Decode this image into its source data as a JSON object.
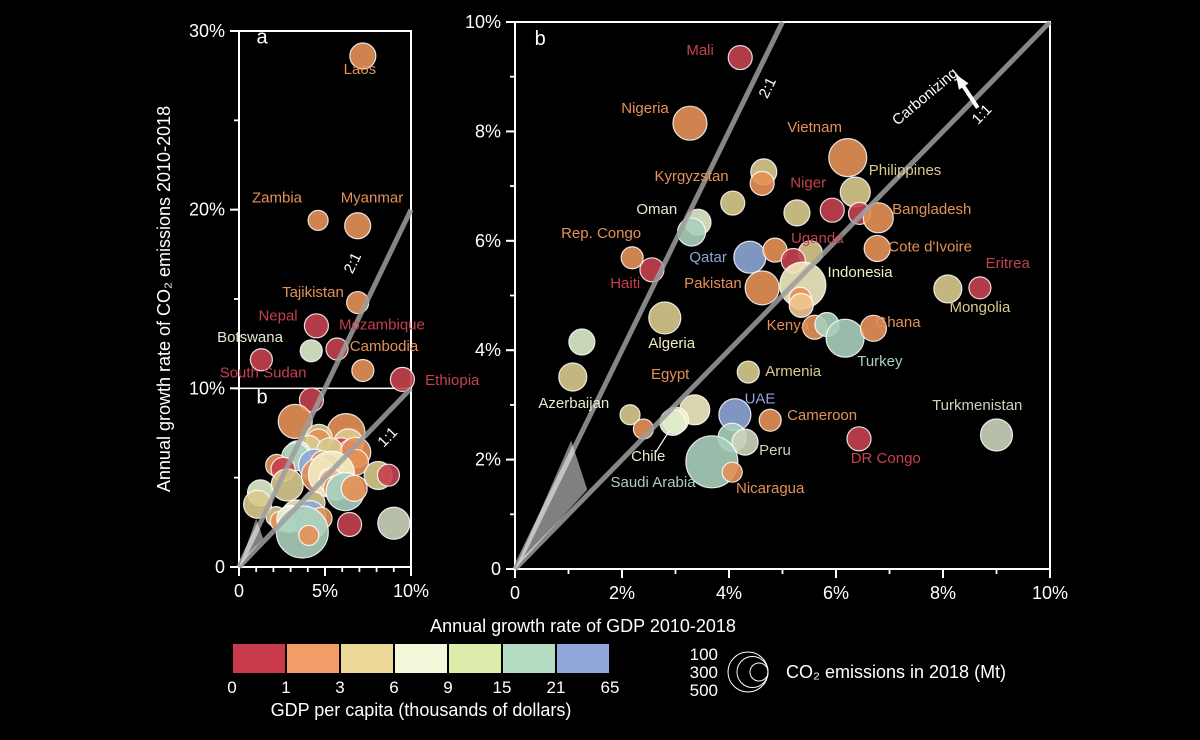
{
  "figure": {
    "x_axis_label": "Annual growth rate of GDP 2010-2018",
    "y_axis_label": "Annual growth rate of CO₂ emissions 2010-2018",
    "background": "#000000"
  },
  "palette": {
    "red": "#c4414f",
    "orange": "#e59158",
    "sand": "#d9ca8d",
    "cream": "#f0ecc2",
    "peach": "#f2c591",
    "palegreen": "#e0edcc",
    "teal": "#a9cfbd",
    "gray": "#ccd4ba",
    "blue": "#8ea6d6",
    "white": "#ffffff",
    "line_gray": "#9e9e9e"
  },
  "legend_color": {
    "caption": "GDP per capita (thousands of dollars)",
    "boundaries": [
      0,
      1,
      3,
      6,
      9,
      15,
      21,
      65
    ],
    "swatches": [
      "#c8394b",
      "#f29c68",
      "#ecd99a",
      "#f3f8da",
      "#dcecaa",
      "#b3dcc3",
      "#8fa7d9"
    ]
  },
  "legend_size": {
    "caption": "CO₂ emissions in 2018 (Mt)",
    "values": [
      100,
      300,
      500
    ],
    "radii": [
      9,
      15.5,
      20
    ]
  },
  "chart_data": [
    {
      "id": "a",
      "type": "scatter",
      "panel_letter": "a",
      "xlim": [
        0,
        10
      ],
      "ylim": [
        0,
        30
      ],
      "x_minor": 1,
      "y_minor": 5,
      "x_ticks": [
        {
          "v": 0,
          "t": "0"
        },
        {
          "v": 5,
          "t": "5%"
        },
        {
          "v": 10,
          "t": "10%"
        }
      ],
      "y_ticks": [
        {
          "v": 0,
          "t": "0"
        },
        {
          "v": 10,
          "t": "10%"
        },
        {
          "v": 20,
          "t": "20%"
        },
        {
          "v": 30,
          "t": "30%"
        }
      ],
      "ref_lines": [
        {
          "name": "2:1",
          "x1": 0,
          "y1": 0,
          "x2": 10,
          "y2": 20
        },
        {
          "name": "1:1",
          "x1": 0,
          "y1": 0,
          "x2": 10,
          "y2": 10
        }
      ],
      "origin_wedge": [
        [
          0,
          0
        ],
        [
          1.0,
          2.7
        ],
        [
          1.4,
          1.6
        ]
      ],
      "inner_box": {
        "x1": 0,
        "y1": 0,
        "x2": 10,
        "y2": 10
      },
      "inset_points_from": "b",
      "points": [
        {
          "n": "Laos",
          "x": 7.2,
          "y": 28.6,
          "r": 13,
          "c": "orange"
        },
        {
          "n": "Zambia",
          "x": 4.6,
          "y": 19.4,
          "r": 10,
          "c": "orange"
        },
        {
          "n": "Myanmar",
          "x": 6.9,
          "y": 19.1,
          "r": 13,
          "c": "orange"
        },
        {
          "n": "Tajikistan",
          "x": 6.9,
          "y": 14.8,
          "r": 11,
          "c": "orange"
        },
        {
          "n": "Nepal",
          "x": 4.5,
          "y": 13.5,
          "r": 12,
          "c": "red"
        },
        {
          "n": "Botswana",
          "x": 4.2,
          "y": 12.1,
          "r": 11,
          "c": "palegreen"
        },
        {
          "n": "Mozambique",
          "x": 5.7,
          "y": 12.2,
          "r": 11,
          "c": "red"
        },
        {
          "n": "Cambodia",
          "x": 7.2,
          "y": 11.0,
          "r": 11,
          "c": "orange"
        },
        {
          "n": "South Sudan",
          "x": 1.3,
          "y": 11.6,
          "r": 11,
          "c": "red"
        },
        {
          "n": "Ethiopia",
          "x": 9.5,
          "y": 10.5,
          "r": 12,
          "c": "red"
        }
      ],
      "labels": [
        {
          "t": "a",
          "x": 1.34,
          "y": 29.3,
          "c": "white",
          "size": 20
        },
        {
          "t": "b",
          "x": 1.34,
          "y": 9.16,
          "c": "white",
          "size": 20
        },
        {
          "t": "Laos",
          "x": 7.03,
          "y": 27.6,
          "c": "orange"
        },
        {
          "t": "Zambia",
          "x": 2.21,
          "y": 20.4,
          "c": "orange"
        },
        {
          "t": "Myanmar",
          "x": 7.73,
          "y": 20.4,
          "c": "orange"
        },
        {
          "t": "Tajikistan",
          "x": 4.3,
          "y": 15.1,
          "c": "orange"
        },
        {
          "t": "Nepal",
          "x": 2.27,
          "y": 13.8,
          "c": "red"
        },
        {
          "t": "Mozambique",
          "x": 8.31,
          "y": 13.3,
          "c": "red"
        },
        {
          "t": "Botswana",
          "x": 0.64,
          "y": 12.6,
          "c": "palegreen"
        },
        {
          "t": "Cambodia",
          "x": 8.43,
          "y": 12.1,
          "c": "orange"
        },
        {
          "t": "South Sudan",
          "x": 1.4,
          "y": 10.6,
          "c": "red"
        },
        {
          "t": "Ethiopia",
          "x": 12.4,
          "y": 10.2,
          "c": "red"
        },
        {
          "t": "2:1",
          "x": 6.86,
          "y": 16.9,
          "c": "white",
          "rot": -64
        },
        {
          "t": "1:1",
          "x": 8.84,
          "y": 7.08,
          "c": "white",
          "rot": -46
        }
      ]
    },
    {
      "id": "b",
      "type": "scatter",
      "panel_letter": "b",
      "xlim": [
        0,
        10
      ],
      "ylim": [
        0,
        10
      ],
      "x_minor": 1,
      "y_minor": 1,
      "x_ticks": [
        {
          "v": 0,
          "t": "0"
        },
        {
          "v": 2,
          "t": "2%"
        },
        {
          "v": 4,
          "t": "4%"
        },
        {
          "v": 6,
          "t": "6%"
        },
        {
          "v": 8,
          "t": "8%"
        },
        {
          "v": 10,
          "t": "10%"
        }
      ],
      "y_ticks": [
        {
          "v": 0,
          "t": "0"
        },
        {
          "v": 2,
          "t": "2%"
        },
        {
          "v": 4,
          "t": "4%"
        },
        {
          "v": 6,
          "t": "6%"
        },
        {
          "v": 8,
          "t": "8%"
        },
        {
          "v": 10,
          "t": "10%"
        }
      ],
      "ref_lines": [
        {
          "name": "2:1",
          "x1": 0,
          "y1": 0,
          "x2": 5,
          "y2": 10
        },
        {
          "name": "1:1",
          "x1": 0,
          "y1": 0,
          "x2": 10,
          "y2": 10
        }
      ],
      "origin_wedge": [
        [
          0,
          0
        ],
        [
          1.05,
          2.35
        ],
        [
          1.35,
          1.45
        ]
      ],
      "pointers": [
        {
          "x1": 2.62,
          "y1": 2.12,
          "x2": 2.88,
          "y2": 2.52
        }
      ],
      "annotation": {
        "text": "Carbonizing",
        "x": 7.72,
        "y": 8.57,
        "rot": -40,
        "arrow": {
          "x1": 8.65,
          "y1": 8.43,
          "x2": 8.28,
          "y2": 8.98
        }
      },
      "points": [
        {
          "n": "Mali",
          "x": 4.21,
          "y": 9.35,
          "r": 12,
          "c": "red"
        },
        {
          "n": "Nigeria",
          "x": 3.27,
          "y": 8.15,
          "r": 17,
          "c": "orange"
        },
        {
          "n": "Vietnam",
          "x": 6.22,
          "y": 7.52,
          "r": 19,
          "c": "orange"
        },
        {
          "n": "",
          "x": 4.65,
          "y": 7.26,
          "r": 13,
          "c": "sand"
        },
        {
          "n": "Kyrgyzstan",
          "x": 4.62,
          "y": 7.05,
          "r": 12,
          "c": "orange"
        },
        {
          "n": "",
          "x": 4.07,
          "y": 6.69,
          "r": 12,
          "c": "sand"
        },
        {
          "n": "Philippines",
          "x": 6.36,
          "y": 6.89,
          "r": 15,
          "c": "sand"
        },
        {
          "n": "Niger",
          "x": 5.93,
          "y": 6.56,
          "r": 12,
          "c": "red"
        },
        {
          "n": "",
          "x": 6.44,
          "y": 6.5,
          "r": 11,
          "c": "red"
        },
        {
          "n": "",
          "x": 5.27,
          "y": 6.51,
          "r": 13,
          "c": "sand"
        },
        {
          "n": "Bangladesh",
          "x": 6.79,
          "y": 6.42,
          "r": 15,
          "c": "orange"
        },
        {
          "n": "",
          "x": 3.42,
          "y": 6.34,
          "r": 13,
          "c": "palegreen"
        },
        {
          "n": "Oman",
          "x": 3.3,
          "y": 6.16,
          "r": 14,
          "c": "teal"
        },
        {
          "n": "Rep. Congo",
          "x": 2.19,
          "y": 5.69,
          "r": 11,
          "c": "orange"
        },
        {
          "n": "Haiti",
          "x": 2.56,
          "y": 5.47,
          "r": 12,
          "c": "red"
        },
        {
          "n": "Qatar",
          "x": 4.39,
          "y": 5.7,
          "r": 16,
          "c": "blue"
        },
        {
          "n": "",
          "x": 4.86,
          "y": 5.83,
          "r": 12,
          "c": "orange"
        },
        {
          "n": "",
          "x": 5.52,
          "y": 5.78,
          "r": 12,
          "c": "sand"
        },
        {
          "n": "Uganda",
          "x": 5.2,
          "y": 5.64,
          "r": 12,
          "c": "red"
        },
        {
          "n": "Cote d'Ivoire",
          "x": 6.77,
          "y": 5.86,
          "r": 13,
          "c": "orange"
        },
        {
          "n": "Pakistan",
          "x": 4.62,
          "y": 5.14,
          "r": 17,
          "c": "orange"
        },
        {
          "n": "Indonesia",
          "x": 5.38,
          "y": 5.19,
          "r": 23,
          "c": "cream"
        },
        {
          "n": "",
          "x": 5.33,
          "y": 4.95,
          "r": 11,
          "c": "orange"
        },
        {
          "n": "",
          "x": 5.35,
          "y": 4.82,
          "r": 12,
          "c": "peach"
        },
        {
          "n": "Mongolia",
          "x": 8.09,
          "y": 5.12,
          "r": 14,
          "c": "sand"
        },
        {
          "n": "Eritrea",
          "x": 8.69,
          "y": 5.14,
          "r": 11,
          "c": "red"
        },
        {
          "n": "Algeria",
          "x": 2.8,
          "y": 4.59,
          "r": 16,
          "c": "sand"
        },
        {
          "n": "Kenya",
          "x": 5.6,
          "y": 4.42,
          "r": 12,
          "c": "orange"
        },
        {
          "n": "",
          "x": 5.83,
          "y": 4.47,
          "r": 12,
          "c": "teal"
        },
        {
          "n": "Turkey",
          "x": 6.17,
          "y": 4.22,
          "r": 19,
          "c": "teal"
        },
        {
          "n": "Ghana",
          "x": 6.7,
          "y": 4.4,
          "r": 13,
          "c": "orange"
        },
        {
          "n": "Armenia",
          "x": 4.36,
          "y": 3.6,
          "r": 11,
          "c": "sand"
        },
        {
          "n": "",
          "x": 1.25,
          "y": 4.15,
          "r": 13,
          "c": "palegreen"
        },
        {
          "n": "Azerbaijan",
          "x": 1.08,
          "y": 3.51,
          "r": 14,
          "c": "sand"
        },
        {
          "n": "Egypt",
          "x": 3.36,
          "y": 2.91,
          "r": 15,
          "c": "cream"
        },
        {
          "n": "",
          "x": 3.0,
          "y": 2.72,
          "r": 13,
          "c": "cream"
        },
        {
          "n": "",
          "x": 2.15,
          "y": 2.82,
          "r": 10,
          "c": "sand"
        },
        {
          "n": "",
          "x": 2.4,
          "y": 2.56,
          "r": 10,
          "c": "orange"
        },
        {
          "n": "Chile",
          "x": 2.95,
          "y": 2.68,
          "r": 13,
          "c": "palegreen"
        },
        {
          "n": "UAE",
          "x": 4.11,
          "y": 2.82,
          "r": 16,
          "c": "blue"
        },
        {
          "n": "Cameroon",
          "x": 4.77,
          "y": 2.72,
          "r": 11,
          "c": "orange"
        },
        {
          "n": "",
          "x": 4.06,
          "y": 2.41,
          "r": 14,
          "c": "teal"
        },
        {
          "n": "Peru",
          "x": 4.3,
          "y": 2.32,
          "r": 13,
          "c": "gray"
        },
        {
          "n": "Saudi Arabia",
          "x": 3.68,
          "y": 1.96,
          "r": 26,
          "c": "teal"
        },
        {
          "n": "Nicaragua",
          "x": 4.06,
          "y": 1.77,
          "r": 10,
          "c": "orange"
        },
        {
          "n": "DR Congo",
          "x": 6.43,
          "y": 2.38,
          "r": 12,
          "c": "red"
        },
        {
          "n": "Turkmenistan",
          "x": 9.0,
          "y": 2.45,
          "r": 16,
          "c": "gray"
        }
      ],
      "labels": [
        {
          "t": "b",
          "x": 0.47,
          "y": 9.58,
          "c": "white",
          "size": 20
        },
        {
          "t": "Mali",
          "x": 3.46,
          "y": 9.4,
          "c": "red"
        },
        {
          "t": "Nigeria",
          "x": 2.43,
          "y": 8.34,
          "c": "orange"
        },
        {
          "t": "Vietnam",
          "x": 5.6,
          "y": 7.99,
          "c": "orange"
        },
        {
          "t": "Kyrgyzstan",
          "x": 3.3,
          "y": 7.09,
          "c": "orange"
        },
        {
          "t": "Philippines",
          "x": 7.29,
          "y": 7.2,
          "c": "sand"
        },
        {
          "t": "Niger",
          "x": 5.48,
          "y": 6.97,
          "c": "red"
        },
        {
          "t": "Oman",
          "x": 2.65,
          "y": 6.49,
          "c": "palegreen"
        },
        {
          "t": "Bangladesh",
          "x": 7.79,
          "y": 6.49,
          "c": "orange"
        },
        {
          "t": "Rep. Congo",
          "x": 1.61,
          "y": 6.05,
          "c": "orange"
        },
        {
          "t": "Qatar",
          "x": 3.61,
          "y": 5.61,
          "c": "blue"
        },
        {
          "t": "Uganda",
          "x": 5.65,
          "y": 5.96,
          "c": "red"
        },
        {
          "t": "Cote d'Ivoire",
          "x": 7.76,
          "y": 5.8,
          "c": "orange"
        },
        {
          "t": "Haiti",
          "x": 2.06,
          "y": 5.14,
          "c": "red"
        },
        {
          "t": "Pakistan",
          "x": 3.7,
          "y": 5.14,
          "c": "orange"
        },
        {
          "t": "Indonesia",
          "x": 6.45,
          "y": 5.34,
          "c": "cream"
        },
        {
          "t": "Eritrea",
          "x": 9.21,
          "y": 5.5,
          "c": "red"
        },
        {
          "t": "Mongolia",
          "x": 8.69,
          "y": 4.7,
          "c": "sand"
        },
        {
          "t": "Algeria",
          "x": 2.93,
          "y": 4.04,
          "c": "cream"
        },
        {
          "t": "Kenya",
          "x": 5.1,
          "y": 4.37,
          "c": "orange"
        },
        {
          "t": "Ghana",
          "x": 7.16,
          "y": 4.42,
          "c": "orange"
        },
        {
          "t": "Turkey",
          "x": 6.82,
          "y": 3.71,
          "c": "teal"
        },
        {
          "t": "Armenia",
          "x": 5.2,
          "y": 3.53,
          "c": "sand"
        },
        {
          "t": "Azerbaijan",
          "x": 1.1,
          "y": 2.94,
          "c": "palegreen"
        },
        {
          "t": "Egypt",
          "x": 2.9,
          "y": 3.47,
          "c": "orange"
        },
        {
          "t": "UAE",
          "x": 4.58,
          "y": 3.03,
          "c": "blue"
        },
        {
          "t": "Cameroon",
          "x": 5.74,
          "y": 2.72,
          "c": "orange"
        },
        {
          "t": "Turkmenistan",
          "x": 8.64,
          "y": 2.91,
          "c": "gray"
        },
        {
          "t": "Chile",
          "x": 2.49,
          "y": 1.97,
          "c": "palegreen"
        },
        {
          "t": "Peru",
          "x": 4.86,
          "y": 2.08,
          "c": "gray"
        },
        {
          "t": "DR Congo",
          "x": 6.93,
          "y": 1.94,
          "c": "red"
        },
        {
          "t": "Saudi Arabia",
          "x": 2.58,
          "y": 1.5,
          "c": "teal"
        },
        {
          "t": "Nicaragua",
          "x": 4.77,
          "y": 1.39,
          "c": "orange"
        },
        {
          "t": "2:1",
          "x": 4.8,
          "y": 8.76,
          "c": "white",
          "rot": -64
        },
        {
          "t": "1:1",
          "x": 8.79,
          "y": 8.25,
          "c": "white",
          "rot": -46
        }
      ]
    }
  ]
}
